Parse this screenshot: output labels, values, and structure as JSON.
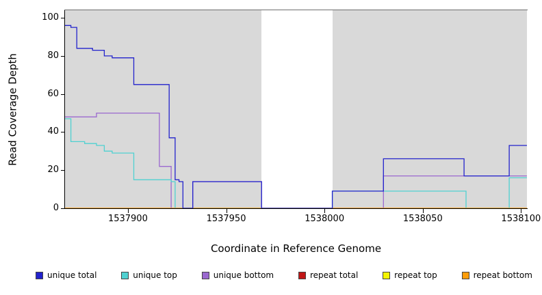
{
  "chart_data": {
    "type": "line",
    "step": "step-after",
    "title": "",
    "xlabel": "Coordinate in Reference Genome",
    "ylabel": "Read Coverage Depth",
    "x_range": [
      1537868,
      1538103
    ],
    "y_range": [
      0,
      104
    ],
    "x_ticks": [
      1537900,
      1537950,
      1538000,
      1538050,
      1538100
    ],
    "y_ticks": [
      0,
      20,
      40,
      60,
      80,
      100
    ],
    "grid": "off",
    "plot_background": "#d9d9d9",
    "masked_region": {
      "start": 1537968,
      "end": 1538004,
      "color": "#ffffff"
    },
    "series": [
      {
        "name": "repeat total",
        "color": "#c01616",
        "points": [
          [
            1537868,
            0
          ]
        ]
      },
      {
        "name": "repeat top",
        "color": "#f5f500",
        "points": [
          [
            1537868,
            0
          ]
        ]
      },
      {
        "name": "unique bottom",
        "color": "#9a68cf",
        "points": [
          [
            1537868,
            48
          ],
          [
            1537884,
            50
          ],
          [
            1537916,
            22
          ],
          [
            1537922,
            0
          ],
          [
            1537933,
            14
          ],
          [
            1537968,
            0
          ],
          [
            1538030,
            17
          ]
        ]
      },
      {
        "name": "unique top",
        "color": "#4fd1d1",
        "points": [
          [
            1537868,
            47
          ],
          [
            1537871,
            35
          ],
          [
            1537878,
            34
          ],
          [
            1537884,
            33
          ],
          [
            1537888,
            30
          ],
          [
            1537892,
            29
          ],
          [
            1537903,
            15
          ],
          [
            1537922,
            14
          ],
          [
            1537924,
            0
          ],
          [
            1538004,
            9
          ],
          [
            1538072,
            0
          ],
          [
            1538094,
            16
          ]
        ]
      },
      {
        "name": "repeat bottom",
        "color": "#ff9d0a",
        "points": [
          [
            1537868,
            0
          ]
        ]
      },
      {
        "name": "unique total",
        "color": "#2222cc",
        "points": [
          [
            1537868,
            96
          ],
          [
            1537871,
            95
          ],
          [
            1537874,
            84
          ],
          [
            1537882,
            83
          ],
          [
            1537888,
            80
          ],
          [
            1537892,
            79
          ],
          [
            1537903,
            65
          ],
          [
            1537921,
            37
          ],
          [
            1537924,
            15
          ],
          [
            1537926,
            14
          ],
          [
            1537928,
            0
          ],
          [
            1537933,
            14
          ],
          [
            1537968,
            0
          ],
          [
            1538004,
            9
          ],
          [
            1538030,
            26
          ],
          [
            1538071,
            17
          ],
          [
            1538094,
            33
          ]
        ]
      }
    ],
    "legend": {
      "position": "bottom",
      "items": [
        {
          "label": "unique total",
          "color": "#2222cc"
        },
        {
          "label": "unique top",
          "color": "#4fd1d1"
        },
        {
          "label": "unique bottom",
          "color": "#9a68cf"
        },
        {
          "label": "repeat total",
          "color": "#c01616"
        },
        {
          "label": "repeat top",
          "color": "#f5f500"
        },
        {
          "label": "repeat bottom",
          "color": "#ff9d0a"
        }
      ]
    }
  }
}
